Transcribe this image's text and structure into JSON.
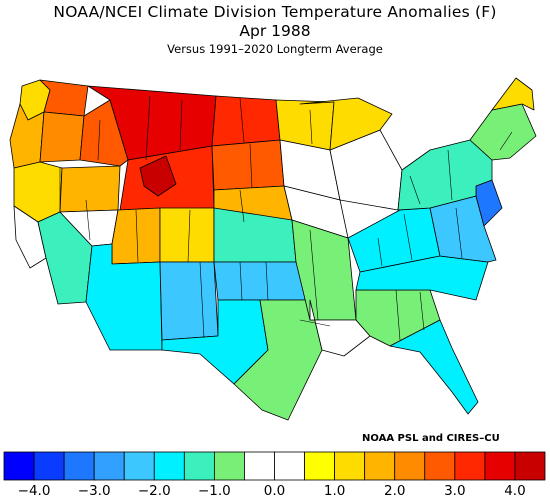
{
  "title": "NOAA/NCEI Climate Division Temperature Anomalies (F)",
  "period": "Apr 1988",
  "subtitle": "Versus 1991–2020 Longterm Average",
  "credit": "NOAA PSL and CIRES–CU",
  "colorbar": {
    "colors": [
      "#0000ff",
      "#0a3cff",
      "#1e78ff",
      "#32a0ff",
      "#3cc8ff",
      "#00f0ff",
      "#3cf0be",
      "#78f078",
      "#ffffff",
      "#ffffff",
      "#ffff00",
      "#ffdc00",
      "#ffb400",
      "#ff8c00",
      "#ff5a00",
      "#ff2800",
      "#e60000",
      "#c80000"
    ],
    "ticks": [
      {
        "value": -4.0,
        "label": "−4.0"
      },
      {
        "value": -3.0,
        "label": "−3.0"
      },
      {
        "value": -2.0,
        "label": "−2.0"
      },
      {
        "value": -1.0,
        "label": "−1.0"
      },
      {
        "value": 0.0,
        "label": "0.0"
      },
      {
        "value": 1.0,
        "label": "1.0"
      },
      {
        "value": 2.0,
        "label": "2.0"
      },
      {
        "value": 3.0,
        "label": "3.0"
      },
      {
        "value": 4.0,
        "label": "4.0"
      }
    ]
  },
  "regions": [
    {
      "name": "washington-coast",
      "anomaly": 1.2
    },
    {
      "name": "washington-east",
      "anomaly": 2.5
    },
    {
      "name": "oregon-coast",
      "anomaly": 1.6
    },
    {
      "name": "oregon-east",
      "anomaly": 2.2
    },
    {
      "name": "california-north",
      "anomaly": 1.2
    },
    {
      "name": "california-coast",
      "anomaly": 0.3
    },
    {
      "name": "california-south",
      "anomaly": -1.2
    },
    {
      "name": "nevada-north",
      "anomaly": 1.9
    },
    {
      "name": "nevada-south",
      "anomaly": 0.3
    },
    {
      "name": "idaho",
      "anomaly": 2.8
    },
    {
      "name": "montana",
      "anomaly": 3.6
    },
    {
      "name": "wyoming",
      "anomaly": 3.0
    },
    {
      "name": "yellowstone",
      "anomaly": 4.0
    },
    {
      "name": "utah",
      "anomaly": 1.9
    },
    {
      "name": "colorado-west",
      "anomaly": 1.4
    },
    {
      "name": "north-dakota",
      "anomaly": 3.4
    },
    {
      "name": "south-dakota",
      "anomaly": 2.6
    },
    {
      "name": "nebraska",
      "anomaly": 1.8
    },
    {
      "name": "minnesota-north",
      "anomaly": 1.2
    },
    {
      "name": "minnesota-south",
      "anomaly": 0.3
    },
    {
      "name": "wisconsin-michigan",
      "anomaly": 0.2
    },
    {
      "name": "iowa-illinois",
      "anomaly": 0.2
    },
    {
      "name": "michigan-upper",
      "anomaly": 1.2
    },
    {
      "name": "kansas-colorado-east",
      "anomaly": -1.3
    },
    {
      "name": "arizona",
      "anomaly": -1.7
    },
    {
      "name": "new-mexico",
      "anomaly": -2.3
    },
    {
      "name": "oklahoma",
      "anomaly": -2.4
    },
    {
      "name": "west-texas",
      "anomaly": -1.6
    },
    {
      "name": "south-texas",
      "anomaly": -0.9
    },
    {
      "name": "missouri-arkansas",
      "anomaly": -1.0
    },
    {
      "name": "louisiana-mississippi",
      "anomaly": 0.3
    },
    {
      "name": "alabama-georgia",
      "anomaly": -1.0
    },
    {
      "name": "florida",
      "anomaly": -1.6
    },
    {
      "name": "ohio-valley",
      "anomaly": -1.6
    },
    {
      "name": "carolinas",
      "anomaly": -1.7
    },
    {
      "name": "virginia-pennsylvania",
      "anomaly": -2.3
    },
    {
      "name": "new-jersey",
      "anomaly": -3.4
    },
    {
      "name": "new-york",
      "anomaly": -1.3
    },
    {
      "name": "new-england",
      "anomaly": -1.0
    },
    {
      "name": "maine-north",
      "anomaly": 1.2
    }
  ]
}
